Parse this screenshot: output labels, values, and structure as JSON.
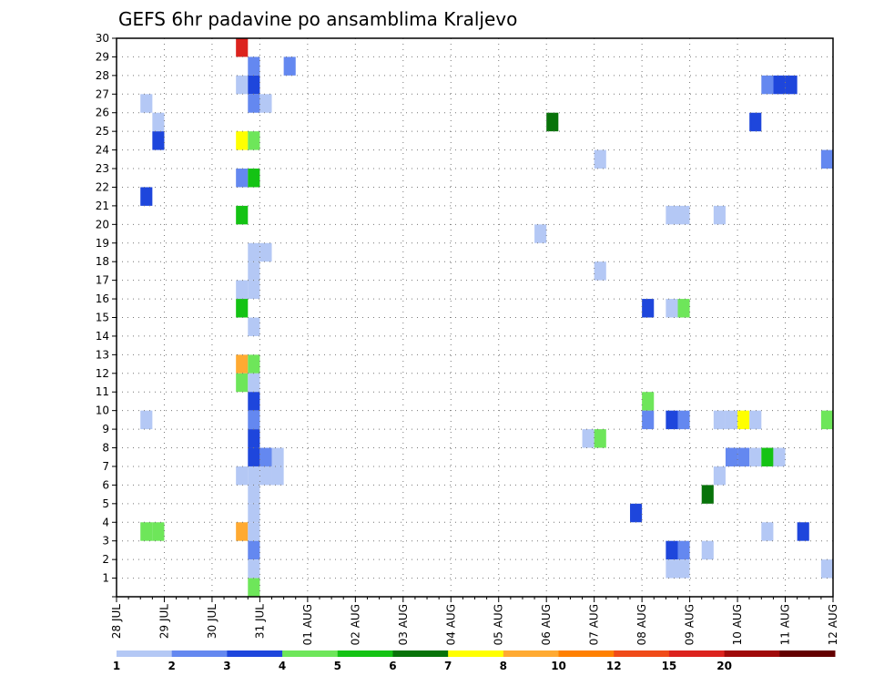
{
  "chart_data": {
    "type": "heatmap",
    "title": "GEFS 6hr padavine po ansamblima Kraljevo",
    "xlabel": "",
    "ylabel": "",
    "x_ticks": [
      "28 JUL",
      "29 JUL",
      "30 JUL",
      "31 JUL",
      "01 AUG",
      "02 AUG",
      "03 AUG",
      "04 AUG",
      "05 AUG",
      "06 AUG",
      "07 AUG",
      "08 AUG",
      "09 AUG",
      "10 AUG",
      "11 AUG",
      "12 AUG"
    ],
    "x_unit": "6-hour steps since 28 JUL 00Z",
    "xlim": [
      0,
      60
    ],
    "y_ticks": [
      1,
      2,
      3,
      4,
      5,
      6,
      7,
      8,
      9,
      10,
      11,
      12,
      13,
      14,
      15,
      16,
      17,
      18,
      19,
      20,
      21,
      22,
      23,
      24,
      25,
      26,
      27,
      28,
      29,
      30
    ],
    "ylim": [
      0,
      30
    ],
    "grid": true,
    "legend_placement": "bottom",
    "color_levels": [
      {
        "label": "1",
        "color": "#b4c8f5"
      },
      {
        "label": "2",
        "color": "#6488f0"
      },
      {
        "label": "3",
        "color": "#1e46dc"
      },
      {
        "label": "4",
        "color": "#6ee65a"
      },
      {
        "label": "5",
        "color": "#14c314"
      },
      {
        "label": "6",
        "color": "#08730a"
      },
      {
        "label": "7",
        "color": "#ffff00"
      },
      {
        "label": "8",
        "color": "#ffaa32"
      },
      {
        "label": "10",
        "color": "#ff8000"
      },
      {
        "label": "12",
        "color": "#f04b19"
      },
      {
        "label": "15",
        "color": "#dc231e"
      },
      {
        "label": "20",
        "color": "#a00a0a"
      },
      {
        "label": "",
        "color": "#640000"
      }
    ],
    "cells": [
      [
        2,
        26,
        0
      ],
      [
        2,
        9,
        0
      ],
      [
        2,
        3,
        3
      ],
      [
        3,
        3,
        3
      ],
      [
        3,
        25,
        0
      ],
      [
        3,
        24,
        2
      ],
      [
        2,
        21,
        2
      ],
      [
        10,
        29,
        10
      ],
      [
        11,
        28,
        1
      ],
      [
        14,
        28,
        1
      ],
      [
        10,
        27,
        0
      ],
      [
        11,
        27,
        2
      ],
      [
        11,
        26,
        1
      ],
      [
        12,
        26,
        0
      ],
      [
        10,
        24,
        6
      ],
      [
        11,
        24,
        3
      ],
      [
        10,
        22,
        1
      ],
      [
        11,
        22,
        4
      ],
      [
        10,
        20,
        4
      ],
      [
        11,
        18,
        0
      ],
      [
        12,
        18,
        0
      ],
      [
        11,
        17,
        0
      ],
      [
        10,
        16,
        0
      ],
      [
        11,
        16,
        0
      ],
      [
        10,
        15,
        4
      ],
      [
        11,
        14,
        0
      ],
      [
        10,
        12,
        7
      ],
      [
        11,
        12,
        3
      ],
      [
        10,
        11,
        3
      ],
      [
        11,
        11,
        0
      ],
      [
        11,
        10,
        2
      ],
      [
        11,
        9,
        1
      ],
      [
        11,
        8,
        2
      ],
      [
        11,
        7,
        2
      ],
      [
        12,
        7,
        1
      ],
      [
        13,
        7,
        0
      ],
      [
        10,
        6,
        0
      ],
      [
        11,
        6,
        0
      ],
      [
        12,
        6,
        0
      ],
      [
        13,
        6,
        0
      ],
      [
        11,
        5,
        0
      ],
      [
        11,
        4,
        0
      ],
      [
        10,
        3,
        7
      ],
      [
        11,
        3,
        0
      ],
      [
        11,
        2,
        1
      ],
      [
        11,
        1,
        0
      ],
      [
        11,
        0,
        3
      ],
      [
        36,
        25,
        5
      ],
      [
        35,
        19,
        0
      ],
      [
        40,
        23,
        0
      ],
      [
        40,
        17,
        0
      ],
      [
        39,
        8,
        0
      ],
      [
        40,
        8,
        3
      ],
      [
        44,
        15,
        2
      ],
      [
        43,
        4,
        2
      ],
      [
        44,
        10,
        3
      ],
      [
        44,
        9,
        1
      ],
      [
        46,
        20,
        0
      ],
      [
        47,
        20,
        0
      ],
      [
        50,
        20,
        0
      ],
      [
        46,
        15,
        0
      ],
      [
        47,
        15,
        3
      ],
      [
        46,
        9,
        2
      ],
      [
        47,
        9,
        1
      ],
      [
        50,
        9,
        0
      ],
      [
        46,
        2,
        2
      ],
      [
        47,
        2,
        1
      ],
      [
        46,
        1,
        0
      ],
      [
        47,
        1,
        0
      ],
      [
        49,
        2,
        0
      ],
      [
        50,
        6,
        0
      ],
      [
        49,
        5,
        5
      ],
      [
        51,
        7,
        1
      ],
      [
        52,
        7,
        1
      ],
      [
        53,
        7,
        0
      ],
      [
        54,
        7,
        4
      ],
      [
        55,
        7,
        0
      ],
      [
        51,
        9,
        0
      ],
      [
        52,
        9,
        6
      ],
      [
        53,
        9,
        0
      ],
      [
        59,
        9,
        3
      ],
      [
        53,
        25,
        2
      ],
      [
        54,
        27,
        1
      ],
      [
        55,
        27,
        2
      ],
      [
        56,
        27,
        2
      ],
      [
        59,
        23,
        1
      ],
      [
        54,
        3,
        0
      ],
      [
        57,
        3,
        2
      ],
      [
        59,
        1,
        0
      ]
    ]
  }
}
